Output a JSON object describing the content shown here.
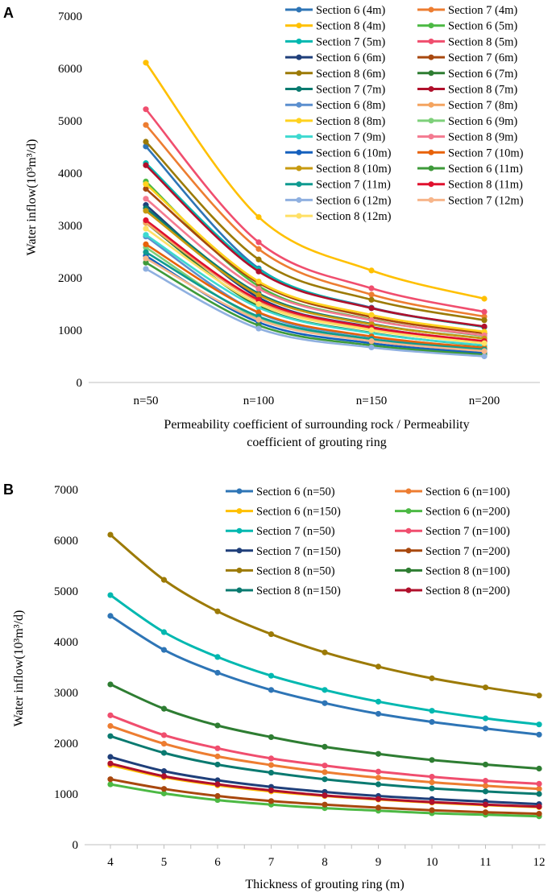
{
  "panels": [
    {
      "panel_label": "A",
      "chart_data": {
        "type": "line",
        "title": "",
        "categories": [
          "n=50",
          "n=100",
          "n=150",
          "n=200"
        ],
        "xlabel_lines": [
          "Permeability coefficient of surrounding rock / Permeability",
          "coefficient of grouting ring"
        ],
        "ylabel": "Water inflow(10³m³/d)",
        "ylim": [
          0,
          7000
        ],
        "yticks": [
          0,
          1000,
          2000,
          3000,
          4000,
          5000,
          6000,
          7000
        ],
        "legend_position": "top-right",
        "series": [
          {
            "name": "Section 6 (4m)",
            "color": "#2E75B6",
            "values": [
              4510,
              2180,
              1430,
              1060
            ]
          },
          {
            "name": "Section 7 (4m)",
            "color": "#ED7D31",
            "values": [
              4920,
              2550,
              1680,
              1260
            ]
          },
          {
            "name": "Section 8 (4m)",
            "color": "#FFC000",
            "values": [
              6110,
              3160,
              2140,
              1600
            ]
          },
          {
            "name": "Section 6 (5m)",
            "color": "#4CB944",
            "values": [
              3840,
              1840,
              1200,
              890
            ]
          },
          {
            "name": "Section 7 (5m)",
            "color": "#00B8B0",
            "values": [
              4190,
              2160,
              1420,
              1060
            ]
          },
          {
            "name": "Section 8 (5m)",
            "color": "#F04E6E",
            "values": [
              5220,
              2680,
              1800,
              1350
            ]
          },
          {
            "name": "Section 6 (6m)",
            "color": "#1F3F7A",
            "values": [
              3390,
              1620,
              1060,
              780
            ]
          },
          {
            "name": "Section 7 (6m)",
            "color": "#A8480E",
            "values": [
              3700,
              1900,
              1250,
              940
            ]
          },
          {
            "name": "Section 8 (6m)",
            "color": "#9C7A06",
            "values": [
              4600,
              2350,
              1580,
              1190
            ]
          },
          {
            "name": "Section 6 (7m)",
            "color": "#2E7D32",
            "values": [
              3050,
              1460,
              950,
              700
            ]
          },
          {
            "name": "Section 7 (7m)",
            "color": "#0A7A70",
            "values": [
              3330,
              1700,
              1120,
              840
            ]
          },
          {
            "name": "Section 8 (7m)",
            "color": "#B0102C",
            "values": [
              4150,
              2120,
              1420,
              1070
            ]
          },
          {
            "name": "Section 6 (8m)",
            "color": "#5B8FCF",
            "values": [
              2790,
              1330,
              870,
              640
            ]
          },
          {
            "name": "Section 7 (8m)",
            "color": "#F4A460",
            "values": [
              3050,
              1550,
              1020,
              770
            ]
          },
          {
            "name": "Section 8 (8m)",
            "color": "#FFD21F",
            "values": [
              3790,
              1930,
              1290,
              970
            ]
          },
          {
            "name": "Section 6 (9m)",
            "color": "#7ED07A",
            "values": [
              2580,
              1230,
              800,
              590
            ]
          },
          {
            "name": "Section 7 (9m)",
            "color": "#3ED9D0",
            "values": [
              2820,
              1430,
              940,
              710
            ]
          },
          {
            "name": "Section 8 (9m)",
            "color": "#F47A90",
            "values": [
              3510,
              1790,
              1190,
              900
            ]
          },
          {
            "name": "Section 6 (10m)",
            "color": "#1560BD",
            "values": [
              2420,
              1150,
              750,
              560
            ]
          },
          {
            "name": "Section 7 (10m)",
            "color": "#E8620A",
            "values": [
              2640,
              1340,
              880,
              660
            ]
          },
          {
            "name": "Section 8 (10m)",
            "color": "#C79A10",
            "values": [
              3280,
              1670,
              1110,
              840
            ]
          },
          {
            "name": "Section 6 (11m)",
            "color": "#3E9A3A",
            "values": [
              2290,
              1090,
              710,
              530
            ]
          },
          {
            "name": "Section 7 (11m)",
            "color": "#0E9A90",
            "values": [
              2490,
              1260,
              830,
              630
            ]
          },
          {
            "name": "Section 8 (11m)",
            "color": "#E0102E",
            "values": [
              3100,
              1580,
              1050,
              790
            ]
          },
          {
            "name": "Section 6 (12m)",
            "color": "#8FB0E0",
            "values": [
              2170,
              1030,
              670,
              500
            ]
          },
          {
            "name": "Section 7 (12m)",
            "color": "#F7B58A",
            "values": [
              2370,
              1200,
              790,
              600
            ]
          },
          {
            "name": "Section 8 (12m)",
            "color": "#FFE066",
            "values": [
              2940,
              1500,
              1000,
              750
            ]
          }
        ]
      }
    },
    {
      "panel_label": "B",
      "chart_data": {
        "type": "line",
        "title": "",
        "categories": [
          "4",
          "5",
          "6",
          "7",
          "8",
          "9",
          "10",
          "11",
          "12"
        ],
        "xlabel_lines": [
          "Thickness of grouting ring (m)"
        ],
        "ylabel": "Water inflow(10³m³/d)",
        "ylim": [
          0,
          7000
        ],
        "yticks": [
          0,
          1000,
          2000,
          3000,
          4000,
          5000,
          6000,
          7000
        ],
        "legend_position": "top-right",
        "series": [
          {
            "name": "Section 6 (n=50)",
            "color": "#2E75B6",
            "values": [
              4510,
              3840,
              3390,
              3050,
              2790,
              2580,
              2420,
              2290,
              2170
            ]
          },
          {
            "name": "Section 6 (n=100)",
            "color": "#ED7D31",
            "values": [
              2340,
              1990,
              1740,
              1570,
              1430,
              1320,
              1230,
              1160,
              1100
            ]
          },
          {
            "name": "Section 6 (n=150)",
            "color": "#FFC000",
            "values": [
              1570,
              1330,
              1170,
              1050,
              960,
              890,
              830,
              780,
              740
            ]
          },
          {
            "name": "Section 6 (n=200)",
            "color": "#4CB944",
            "values": [
              1190,
              1010,
              880,
              790,
              720,
              670,
              620,
              590,
              560
            ]
          },
          {
            "name": "Section 7 (n=50)",
            "color": "#00B8B0",
            "values": [
              4920,
              4190,
              3700,
              3330,
              3050,
              2820,
              2640,
              2490,
              2370
            ]
          },
          {
            "name": "Section 7 (n=100)",
            "color": "#F04E6E",
            "values": [
              2550,
              2160,
              1900,
              1700,
              1560,
              1440,
              1340,
              1260,
              1200
            ]
          },
          {
            "name": "Section 7 (n=150)",
            "color": "#1F3F7A",
            "values": [
              1730,
              1450,
              1270,
              1140,
              1040,
              960,
              900,
              850,
              800
            ]
          },
          {
            "name": "Section 7 (n=200)",
            "color": "#A8480E",
            "values": [
              1290,
              1100,
              960,
              860,
              790,
              730,
              680,
              640,
              610
            ]
          },
          {
            "name": "Section 8 (n=50)",
            "color": "#9C7A06",
            "values": [
              6110,
              5220,
              4600,
              4150,
              3790,
              3510,
              3280,
              3100,
              2940
            ]
          },
          {
            "name": "Section 8 (n=100)",
            "color": "#2E7D32",
            "values": [
              3160,
              2680,
              2350,
              2120,
              1930,
              1790,
              1670,
              1580,
              1500
            ]
          },
          {
            "name": "Section 8 (n=150)",
            "color": "#0A7A70",
            "values": [
              2140,
              1810,
              1580,
              1420,
              1290,
              1190,
              1110,
              1050,
              1000
            ]
          },
          {
            "name": "Section 8 (n=200)",
            "color": "#B0102C",
            "values": [
              1600,
              1350,
              1190,
              1070,
              970,
              900,
              840,
              790,
              750
            ]
          }
        ]
      }
    }
  ]
}
